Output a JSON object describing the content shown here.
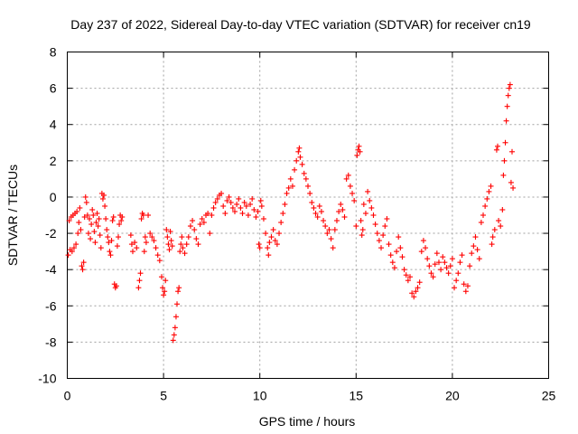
{
  "chart_data": {
    "type": "scatter",
    "title": "Day 237 of 2022, Sidereal Day-to-day VTEC variation (SDTVAR) for receiver cn19",
    "xlabel": "GPS time / hours",
    "ylabel": "SDTVAR / TECUs",
    "xlim": [
      0,
      25
    ],
    "ylim": [
      -10,
      8
    ],
    "xticks": [
      0,
      5,
      10,
      15,
      20,
      25
    ],
    "yticks": [
      -10,
      -8,
      -6,
      -4,
      -2,
      0,
      2,
      4,
      6,
      8
    ],
    "grid": true,
    "marker": "+",
    "marker_color": "#ff0000",
    "series": [
      {
        "name": "SDTVAR",
        "points": [
          [
            0.05,
            -3.2
          ],
          [
            0.1,
            -1.3
          ],
          [
            0.15,
            -2.9
          ],
          [
            0.2,
            -1.1
          ],
          [
            0.25,
            -3.0
          ],
          [
            0.3,
            -1.0
          ],
          [
            0.35,
            -2.8
          ],
          [
            0.4,
            -0.9
          ],
          [
            0.45,
            -2.6
          ],
          [
            0.5,
            -0.8
          ],
          [
            0.55,
            -2.0
          ],
          [
            0.6,
            -1.4
          ],
          [
            0.65,
            -0.6
          ],
          [
            0.7,
            -1.8
          ],
          [
            0.75,
            -3.8
          ],
          [
            0.8,
            -4.0
          ],
          [
            0.85,
            -3.6
          ],
          [
            0.9,
            -1.1
          ],
          [
            0.95,
            0.0
          ],
          [
            1.0,
            -0.3
          ],
          [
            1.05,
            -1.0
          ],
          [
            1.1,
            -2.0
          ],
          [
            1.15,
            -1.2
          ],
          [
            1.2,
            -2.3
          ],
          [
            1.25,
            -1.5
          ],
          [
            1.3,
            -0.7
          ],
          [
            1.35,
            -1.0
          ],
          [
            1.4,
            -1.9
          ],
          [
            1.45,
            -2.5
          ],
          [
            1.5,
            -1.4
          ],
          [
            1.55,
            -0.9
          ],
          [
            1.6,
            -1.6
          ],
          [
            1.65,
            -1.2
          ],
          [
            1.7,
            -2.1
          ],
          [
            1.75,
            -2.8
          ],
          [
            1.8,
            0.2
          ],
          [
            1.85,
            -0.1
          ],
          [
            1.9,
            0.1
          ],
          [
            1.95,
            -0.5
          ],
          [
            2.0,
            -1.2
          ],
          [
            2.05,
            -1.8
          ],
          [
            2.1,
            -2.2
          ],
          [
            2.15,
            -2.5
          ],
          [
            2.2,
            -3.0
          ],
          [
            2.25,
            -3.2
          ],
          [
            2.3,
            -2.4
          ],
          [
            2.35,
            -1.3
          ],
          [
            2.4,
            -1.1
          ],
          [
            2.45,
            -4.8
          ],
          [
            2.5,
            -5.0
          ],
          [
            2.55,
            -4.9
          ],
          [
            2.6,
            -2.7
          ],
          [
            2.65,
            -2.2
          ],
          [
            2.7,
            -1.5
          ],
          [
            2.75,
            -1.0
          ],
          [
            2.8,
            -1.3
          ],
          [
            2.85,
            -1.1
          ],
          [
            3.3,
            -2.1
          ],
          [
            3.35,
            -2.6
          ],
          [
            3.4,
            -3.0
          ],
          [
            3.5,
            -2.5
          ],
          [
            3.6,
            -2.8
          ],
          [
            3.7,
            -5.0
          ],
          [
            3.75,
            -4.6
          ],
          [
            3.8,
            -4.2
          ],
          [
            3.85,
            -1.2
          ],
          [
            3.9,
            -0.9
          ],
          [
            3.95,
            -1.0
          ],
          [
            4.0,
            -3.0
          ],
          [
            4.05,
            -2.2
          ],
          [
            4.1,
            -2.5
          ],
          [
            4.2,
            -1.0
          ],
          [
            4.3,
            -2.0
          ],
          [
            4.4,
            -2.2
          ],
          [
            4.5,
            -2.4
          ],
          [
            4.6,
            -2.8
          ],
          [
            4.7,
            -3.2
          ],
          [
            4.8,
            -3.5
          ],
          [
            4.9,
            -4.4
          ],
          [
            4.95,
            -5.0
          ],
          [
            5.0,
            -5.4
          ],
          [
            5.05,
            -5.2
          ],
          [
            5.1,
            -4.6
          ],
          [
            5.15,
            -1.8
          ],
          [
            5.2,
            -2.2
          ],
          [
            5.25,
            -2.6
          ],
          [
            5.3,
            -2.9
          ],
          [
            5.35,
            -1.9
          ],
          [
            5.4,
            -2.4
          ],
          [
            5.45,
            -2.7
          ],
          [
            5.5,
            -7.9
          ],
          [
            5.55,
            -7.6
          ],
          [
            5.6,
            -7.2
          ],
          [
            5.65,
            -6.6
          ],
          [
            5.7,
            -5.9
          ],
          [
            5.75,
            -5.2
          ],
          [
            5.8,
            -5.0
          ],
          [
            5.85,
            -3.0
          ],
          [
            5.9,
            -2.6
          ],
          [
            5.95,
            -2.2
          ],
          [
            6.0,
            -2.8
          ],
          [
            6.1,
            -3.1
          ],
          [
            6.2,
            -2.6
          ],
          [
            6.3,
            -2.2
          ],
          [
            6.4,
            -1.6
          ],
          [
            6.5,
            -1.3
          ],
          [
            6.6,
            -1.8
          ],
          [
            6.7,
            -2.3
          ],
          [
            6.8,
            -2.6
          ],
          [
            6.9,
            -1.5
          ],
          [
            7.0,
            -1.2
          ],
          [
            7.1,
            -1.4
          ],
          [
            7.2,
            -1.0
          ],
          [
            7.3,
            -0.9
          ],
          [
            7.4,
            -2.0
          ],
          [
            7.5,
            -1.0
          ],
          [
            7.6,
            -0.6
          ],
          [
            7.7,
            -0.3
          ],
          [
            7.8,
            -0.1
          ],
          [
            7.9,
            0.1
          ],
          [
            8.0,
            0.2
          ],
          [
            8.1,
            -0.5
          ],
          [
            8.2,
            -0.9
          ],
          [
            8.3,
            -0.2
          ],
          [
            8.4,
            0.0
          ],
          [
            8.5,
            -0.3
          ],
          [
            8.6,
            -0.6
          ],
          [
            8.7,
            -0.8
          ],
          [
            8.8,
            -0.4
          ],
          [
            8.9,
            -0.1
          ],
          [
            9.0,
            -0.6
          ],
          [
            9.1,
            -0.9
          ],
          [
            9.2,
            -0.3
          ],
          [
            9.3,
            -0.5
          ],
          [
            9.4,
            -1.0
          ],
          [
            9.5,
            -0.4
          ],
          [
            9.6,
            -0.1
          ],
          [
            9.7,
            -0.7
          ],
          [
            9.8,
            -1.1
          ],
          [
            9.9,
            -0.8
          ],
          [
            9.95,
            -2.6
          ],
          [
            10.0,
            -2.8
          ],
          [
            10.05,
            -0.2
          ],
          [
            10.1,
            -0.5
          ],
          [
            10.2,
            -1.2
          ],
          [
            10.3,
            -2.0
          ],
          [
            10.4,
            -2.8
          ],
          [
            10.45,
            -3.2
          ],
          [
            10.5,
            -2.5
          ],
          [
            10.6,
            -2.2
          ],
          [
            10.7,
            -1.8
          ],
          [
            10.8,
            -2.4
          ],
          [
            10.9,
            -2.6
          ],
          [
            11.0,
            -2.0
          ],
          [
            11.1,
            -1.4
          ],
          [
            11.2,
            -0.9
          ],
          [
            11.3,
            -0.4
          ],
          [
            11.4,
            0.2
          ],
          [
            11.5,
            0.5
          ],
          [
            11.6,
            1.0
          ],
          [
            11.7,
            0.6
          ],
          [
            11.8,
            1.5
          ],
          [
            11.9,
            2.0
          ],
          [
            12.0,
            2.5
          ],
          [
            12.05,
            2.7
          ],
          [
            12.1,
            2.2
          ],
          [
            12.2,
            1.8
          ],
          [
            12.3,
            1.3
          ],
          [
            12.4,
            1.0
          ],
          [
            12.5,
            0.6
          ],
          [
            12.6,
            0.2
          ],
          [
            12.7,
            -0.3
          ],
          [
            12.8,
            -0.6
          ],
          [
            12.9,
            -0.9
          ],
          [
            13.0,
            -1.1
          ],
          [
            13.1,
            -0.5
          ],
          [
            13.2,
            -0.8
          ],
          [
            13.3,
            -1.3
          ],
          [
            13.4,
            -1.6
          ],
          [
            13.5,
            -2.0
          ],
          [
            13.6,
            -1.8
          ],
          [
            13.7,
            -2.3
          ],
          [
            13.8,
            -2.8
          ],
          [
            13.9,
            -1.8
          ],
          [
            14.0,
            -1.3
          ],
          [
            14.1,
            -0.8
          ],
          [
            14.2,
            -0.4
          ],
          [
            14.3,
            -0.7
          ],
          [
            14.4,
            -1.1
          ],
          [
            14.5,
            1.0
          ],
          [
            14.6,
            1.2
          ],
          [
            14.7,
            0.6
          ],
          [
            14.8,
            0.2
          ],
          [
            14.9,
            -0.2
          ],
          [
            15.0,
            -1.6
          ],
          [
            15.05,
            2.3
          ],
          [
            15.1,
            2.6
          ],
          [
            15.15,
            2.8
          ],
          [
            15.2,
            2.5
          ],
          [
            15.25,
            -1.3
          ],
          [
            15.3,
            -2.1
          ],
          [
            15.35,
            -1.8
          ],
          [
            15.4,
            -0.4
          ],
          [
            15.5,
            -0.9
          ],
          [
            15.6,
            0.3
          ],
          [
            15.7,
            -0.2
          ],
          [
            15.8,
            -0.6
          ],
          [
            15.9,
            -1.0
          ],
          [
            16.0,
            -1.5
          ],
          [
            16.1,
            -2.0
          ],
          [
            16.2,
            -2.4
          ],
          [
            16.3,
            -2.8
          ],
          [
            16.4,
            -2.1
          ],
          [
            16.5,
            -1.6
          ],
          [
            16.6,
            -1.2
          ],
          [
            16.7,
            -2.6
          ],
          [
            16.8,
            -3.2
          ],
          [
            16.9,
            -3.6
          ],
          [
            17.0,
            -3.9
          ],
          [
            17.1,
            -3.0
          ],
          [
            17.2,
            -2.2
          ],
          [
            17.3,
            -2.8
          ],
          [
            17.4,
            -3.3
          ],
          [
            17.5,
            -4.0
          ],
          [
            17.6,
            -4.3
          ],
          [
            17.7,
            -4.6
          ],
          [
            17.8,
            -4.4
          ],
          [
            17.9,
            -5.3
          ],
          [
            18.0,
            -5.5
          ],
          [
            18.1,
            -5.2
          ],
          [
            18.2,
            -5.0
          ],
          [
            18.3,
            -4.7
          ],
          [
            18.4,
            -3.0
          ],
          [
            18.5,
            -2.4
          ],
          [
            18.6,
            -2.8
          ],
          [
            18.7,
            -3.4
          ],
          [
            18.8,
            -3.8
          ],
          [
            18.9,
            -4.2
          ],
          [
            19.0,
            -4.4
          ],
          [
            19.1,
            -3.7
          ],
          [
            19.2,
            -3.1
          ],
          [
            19.3,
            -3.6
          ],
          [
            19.4,
            -4.0
          ],
          [
            19.5,
            -3.3
          ],
          [
            19.6,
            -3.6
          ],
          [
            19.7,
            -3.9
          ],
          [
            19.8,
            -4.2
          ],
          [
            19.9,
            -3.8
          ],
          [
            20.0,
            -3.4
          ],
          [
            20.1,
            -5.0
          ],
          [
            20.2,
            -4.6
          ],
          [
            20.3,
            -4.2
          ],
          [
            20.4,
            -3.6
          ],
          [
            20.5,
            -3.2
          ],
          [
            20.6,
            -4.8
          ],
          [
            20.7,
            -5.2
          ],
          [
            20.8,
            -4.9
          ],
          [
            20.9,
            -3.8
          ],
          [
            21.0,
            -3.1
          ],
          [
            21.1,
            -2.7
          ],
          [
            21.2,
            -2.2
          ],
          [
            21.3,
            -2.9
          ],
          [
            21.4,
            -3.4
          ],
          [
            21.5,
            -1.4
          ],
          [
            21.6,
            -1.0
          ],
          [
            21.7,
            -0.5
          ],
          [
            21.8,
            -0.1
          ],
          [
            21.9,
            0.3
          ],
          [
            22.0,
            0.6
          ],
          [
            22.05,
            -2.6
          ],
          [
            22.1,
            -2.2
          ],
          [
            22.2,
            -1.8
          ],
          [
            22.3,
            2.6
          ],
          [
            22.35,
            2.8
          ],
          [
            22.4,
            -1.3
          ],
          [
            22.5,
            -1.6
          ],
          [
            22.6,
            -0.7
          ],
          [
            22.65,
            1.2
          ],
          [
            22.7,
            2.0
          ],
          [
            22.75,
            3.0
          ],
          [
            22.8,
            4.2
          ],
          [
            22.85,
            5.0
          ],
          [
            22.9,
            5.6
          ],
          [
            22.95,
            6.0
          ],
          [
            23.0,
            6.2
          ],
          [
            23.05,
            0.8
          ],
          [
            23.1,
            2.5
          ],
          [
            23.15,
            0.5
          ]
        ]
      }
    ]
  }
}
